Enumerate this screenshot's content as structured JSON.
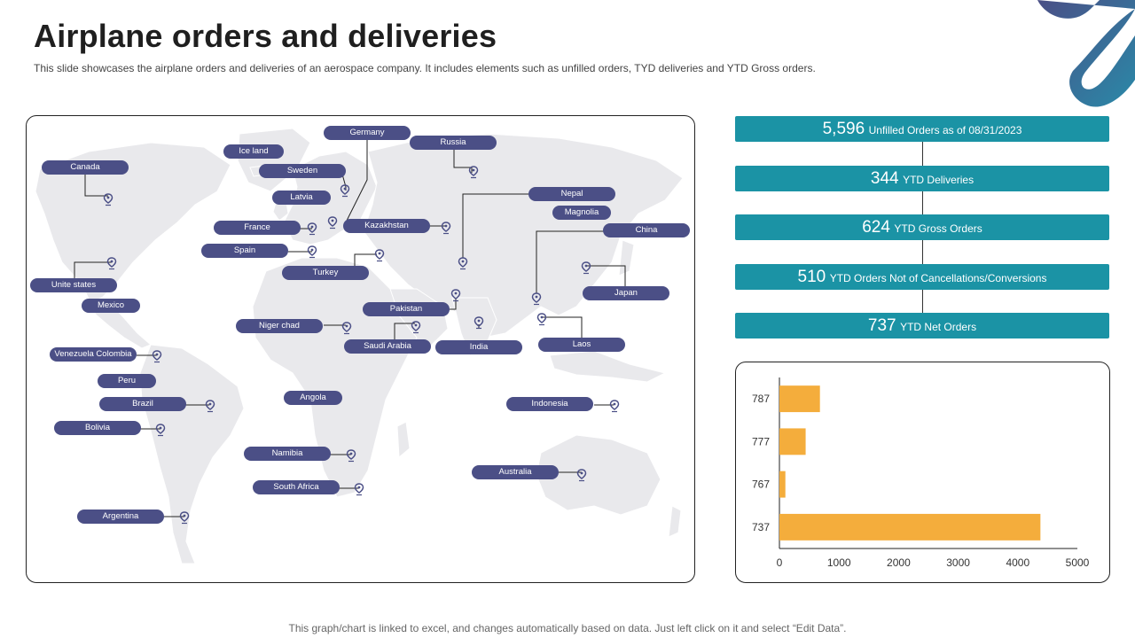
{
  "page": {
    "title": "Airplane orders and deliveries",
    "subtitle": "This slide showcases the airplane orders and deliveries of an aerospace company. It includes elements such as unfilled orders, TYD deliveries and YTD Gross orders.",
    "footer": "This graph/chart is linked to excel, and changes automatically based on data. Just left click on it and select “Edit Data”."
  },
  "colors": {
    "pill": "#4b4f86",
    "stat": "#1b93a5",
    "bar": "#f4ad3c",
    "map": "#e9e9ec",
    "deco_dark": "#4a4f86",
    "deco_light": "#2a89a8"
  },
  "locations": [
    {
      "name": "Germany",
      "icon": "location-pin-icon"
    },
    {
      "name": "Russia",
      "icon": "location-pin-icon"
    },
    {
      "name": "Ice land"
    },
    {
      "name": "Canada",
      "icon": "location-pin-icon"
    },
    {
      "name": "Sweden",
      "icon": "location-pin-icon"
    },
    {
      "name": "Latvia"
    },
    {
      "name": "France",
      "icon": "location-pin-icon"
    },
    {
      "name": "Kazakhstan",
      "icon": "location-pin-icon"
    },
    {
      "name": "Nepal",
      "icon": "location-pin-icon"
    },
    {
      "name": "Magnolia"
    },
    {
      "name": "China",
      "icon": "location-pin-icon"
    },
    {
      "name": "Spain",
      "icon": "location-pin-icon"
    },
    {
      "name": "Turkey",
      "icon": "location-pin-icon"
    },
    {
      "name": "Unite states",
      "icon": "location-pin-icon"
    },
    {
      "name": "Mexico"
    },
    {
      "name": "Japan",
      "icon": "location-pin-icon"
    },
    {
      "name": "Pakistan",
      "icon": "location-pin-icon"
    },
    {
      "name": "Niger chad",
      "icon": "location-pin-icon"
    },
    {
      "name": "Saudi Arabia",
      "icon": "location-pin-icon"
    },
    {
      "name": "India",
      "icon": "location-pin-icon"
    },
    {
      "name": "Laos",
      "icon": "location-pin-icon"
    },
    {
      "name": "Venezuela Colombia",
      "icon": "location-pin-icon"
    },
    {
      "name": "Peru"
    },
    {
      "name": "Brazil",
      "icon": "location-pin-icon"
    },
    {
      "name": "Angola"
    },
    {
      "name": "Indonesia",
      "icon": "location-pin-icon"
    },
    {
      "name": "Bolivia",
      "icon": "location-pin-icon"
    },
    {
      "name": "Namibia",
      "icon": "location-pin-icon"
    },
    {
      "name": "Australia",
      "icon": "location-pin-icon"
    },
    {
      "name": "South Africa",
      "icon": "location-pin-icon"
    },
    {
      "name": "Argentina",
      "icon": "location-pin-icon"
    }
  ],
  "stats": [
    {
      "value": "5,596",
      "label": "Unfilled Orders as of 08/31/2023"
    },
    {
      "value": "344",
      "label": "YTD Deliveries"
    },
    {
      "value": "624",
      "label": "YTD Gross Orders"
    },
    {
      "value": "510",
      "label": "YTD Orders Not of Cancellations/Conversions"
    },
    {
      "value": "737",
      "label": "YTD Net Orders"
    }
  ],
  "chart_data": {
    "type": "bar",
    "orientation": "horizontal",
    "categories": [
      "787",
      "777",
      "767",
      "737"
    ],
    "values": [
      680,
      440,
      100,
      4380
    ],
    "xlim": [
      0,
      5000
    ],
    "xticks": [
      "0",
      "1000",
      "2000",
      "3000",
      "4000",
      "5000"
    ],
    "grid": false,
    "legend": "none"
  }
}
